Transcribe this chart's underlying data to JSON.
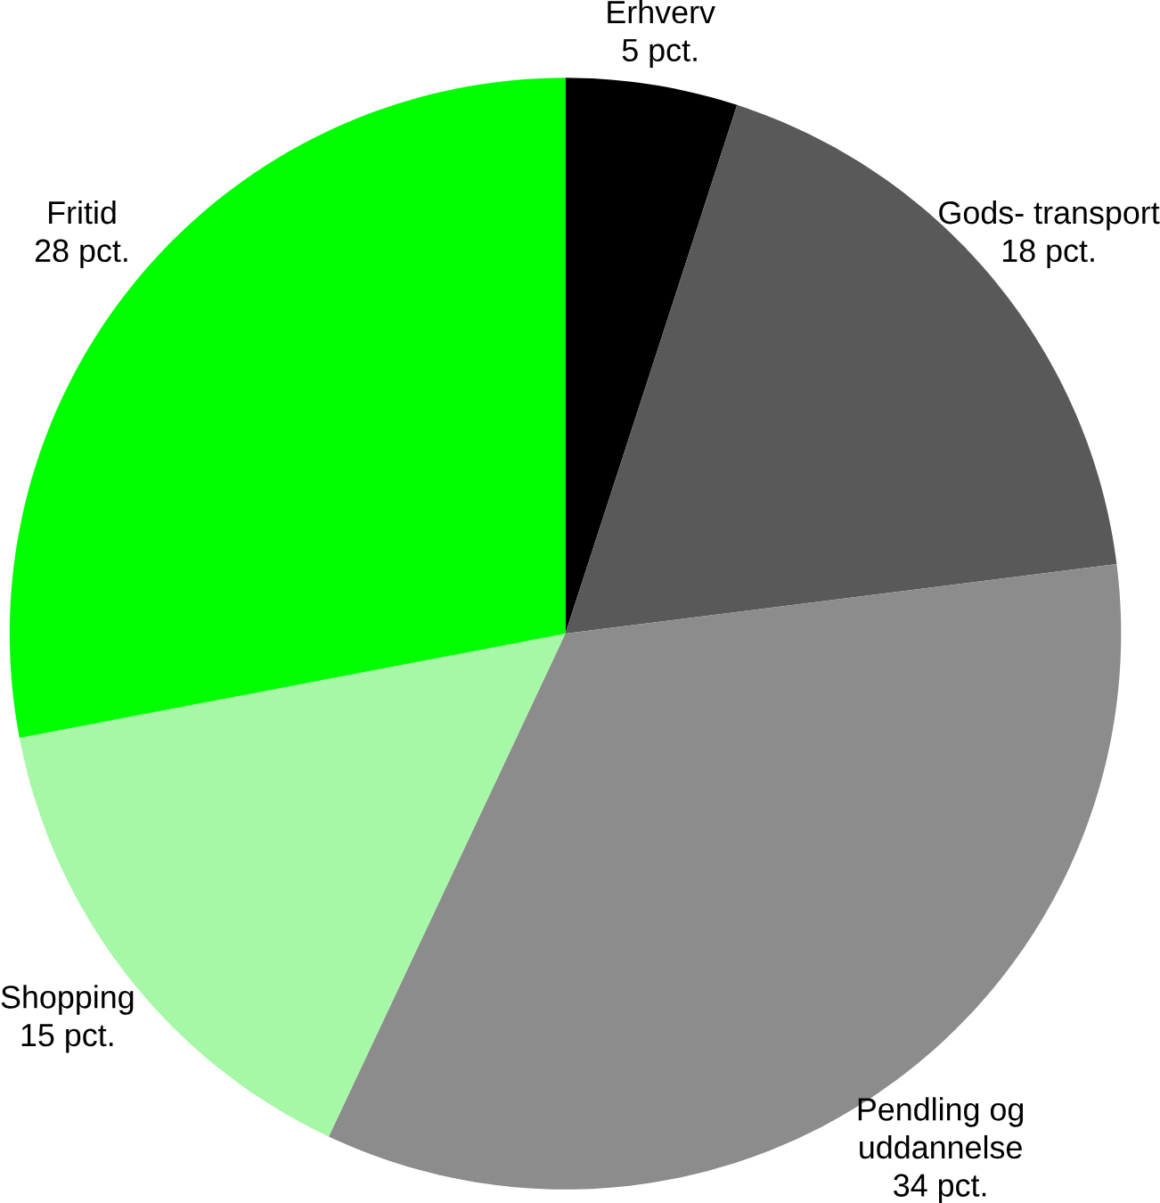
{
  "chart_data": {
    "type": "pie",
    "categories": [
      "Erhverv",
      "Gods- transport",
      "Pendling og uddannelse",
      "Shopping",
      "Fritid"
    ],
    "values": [
      5,
      18,
      34,
      15,
      28
    ],
    "colors": [
      "#000000",
      "#595959",
      "#8c8c8c",
      "#a6f7a6",
      "#00ff00"
    ],
    "value_labels": [
      "5 pct.",
      "18 pct.",
      "34 pct.",
      "15 pct.",
      "28 pct."
    ]
  }
}
